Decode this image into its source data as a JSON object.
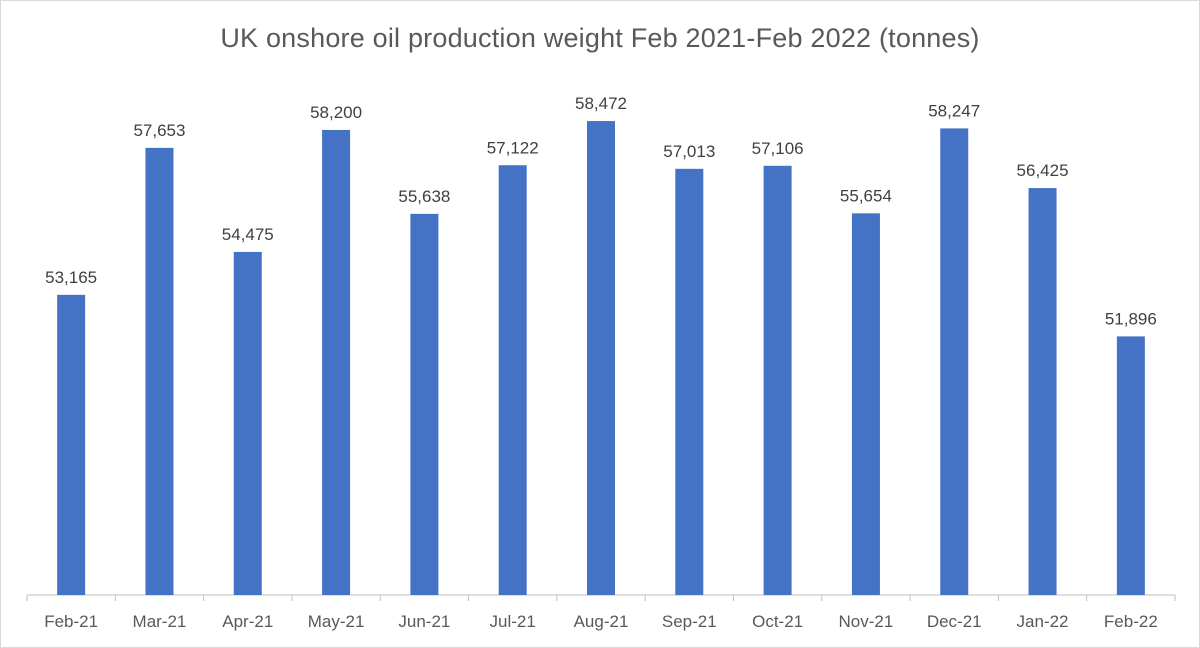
{
  "chart_data": {
    "type": "bar",
    "title": "UK onshore oil production weight Feb 2021-Feb 2022 (tonnes)",
    "categories": [
      "Feb-21",
      "Mar-21",
      "Apr-21",
      "May-21",
      "Jun-21",
      "Jul-21",
      "Aug-21",
      "Sep-21",
      "Oct-21",
      "Nov-21",
      "Dec-21",
      "Jan-22",
      "Feb-22"
    ],
    "values": [
      53165,
      57653,
      54475,
      58200,
      55638,
      57122,
      58472,
      57013,
      57106,
      55654,
      58247,
      56425,
      51896
    ],
    "data_labels": [
      "53,165",
      "57,653",
      "54,475",
      "58,200",
      "55,638",
      "57,122",
      "58,472",
      "57,013",
      "57,106",
      "55,654",
      "58,247",
      "56,425",
      "51,896"
    ],
    "xlabel": "",
    "ylabel": "",
    "ylim": [
      44000,
      60000
    ],
    "y_axis_visible": false,
    "grid": false,
    "legend": "none",
    "colors": {
      "bar": "#4472c4",
      "axis": "#bfbfbf",
      "text": "#595959"
    }
  }
}
